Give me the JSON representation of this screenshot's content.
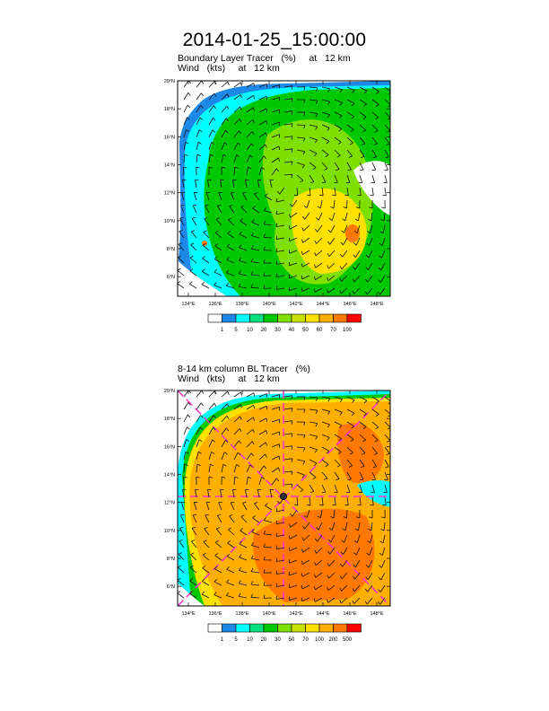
{
  "title": "2014-01-25_15:00:00",
  "colors": {
    "scale_top": [
      "#ffffff",
      "#1e88e6",
      "#00ffff",
      "#00e07f",
      "#00c800",
      "#7fe000",
      "#c8e000",
      "#ffe100",
      "#ffaf00",
      "#ff7800",
      "#ff0000"
    ],
    "scale_bottom": [
      "#ffffff",
      "#1e88e6",
      "#00ffff",
      "#00e07f",
      "#00c800",
      "#7fe000",
      "#c8e000",
      "#ffe100",
      "#ffaf00",
      "#ff7800",
      "#ff0000"
    ],
    "cross_lines": "#ff33cc"
  },
  "panels": [
    {
      "title": "Boundary Layer Tracer   (%)     at   12 km",
      "subtitle": "Wind   (kts)     at   12 km",
      "lat_labels": [
        "20°N",
        "18°N",
        "16°N",
        "14°N",
        "12°N",
        "10°N",
        "8°N",
        "6°N"
      ],
      "lon_labels": [
        "134°E",
        "136°E",
        "138°E",
        "140°E",
        "142°E",
        "144°E",
        "146°E",
        "148°E"
      ],
      "colorbar_labels": [
        "1",
        "5",
        "10",
        "20",
        "30",
        "40",
        "50",
        "60",
        "70",
        "100"
      ]
    },
    {
      "title": "8-14 km column BL Tracer   (%)",
      "subtitle": "Wind   (kts)     at   12 km",
      "lat_labels": [
        "20°N",
        "18°N",
        "16°N",
        "14°N",
        "12°N",
        "10°N",
        "8°N",
        "6°N"
      ],
      "lon_labels": [
        "134°E",
        "136°E",
        "138°E",
        "140°E",
        "142°E",
        "144°E",
        "146°E",
        "148°E"
      ],
      "colorbar_labels": [
        "1",
        "5",
        "10",
        "20",
        "30",
        "50",
        "70",
        "100",
        "200",
        "500"
      ]
    }
  ]
}
